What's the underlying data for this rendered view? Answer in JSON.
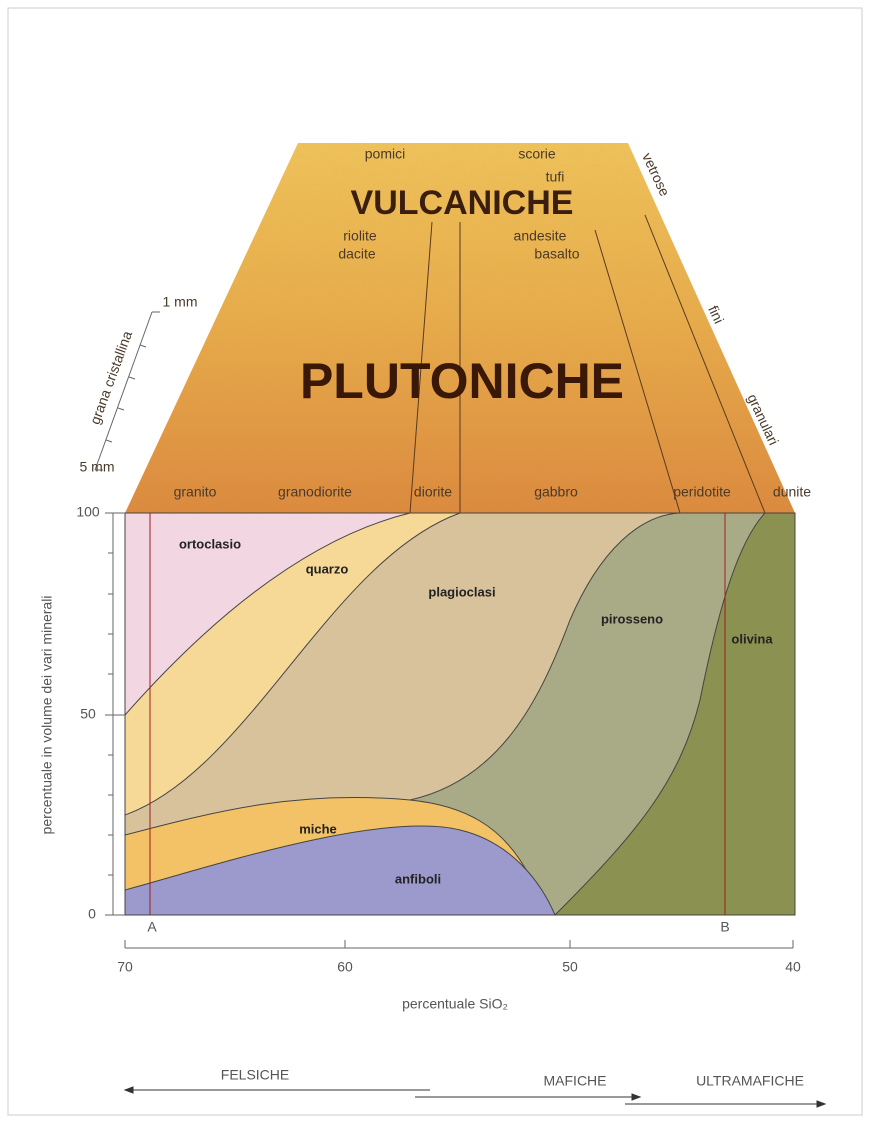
{
  "volcanic": {
    "textures": [
      "pomici",
      "scorie",
      "tufi"
    ],
    "title": "VULCANICHE",
    "rocks": [
      "riolite",
      "dacite",
      "andesite",
      "basalto"
    ],
    "grain_types": [
      "vetrose",
      "fini",
      "granulari"
    ]
  },
  "plutonic": {
    "title": "PLUTONICHE",
    "rocks": [
      "granito",
      "granodiorite",
      "diorite",
      "gabbro",
      "peridotite",
      "dunite"
    ]
  },
  "grain_scale": {
    "title": "grana cristallina",
    "top": "1 mm",
    "bottom": "5 mm"
  },
  "minerals": [
    "ortoclasio",
    "quarzo",
    "plagioclasi",
    "pirosseno",
    "olivina",
    "miche",
    "anfiboli"
  ],
  "markers": [
    "A",
    "B"
  ],
  "y_axis": {
    "title": "percentuale in volume dei vari minerali",
    "ticks": [
      "100",
      "50",
      "0"
    ]
  },
  "x_axis": {
    "title": "percentuale SiO₂",
    "ticks": [
      "70",
      "60",
      "50",
      "40"
    ]
  },
  "classes": [
    "FELSICHE",
    "MAFICHE",
    "ULTRAMAFICHE"
  ]
}
